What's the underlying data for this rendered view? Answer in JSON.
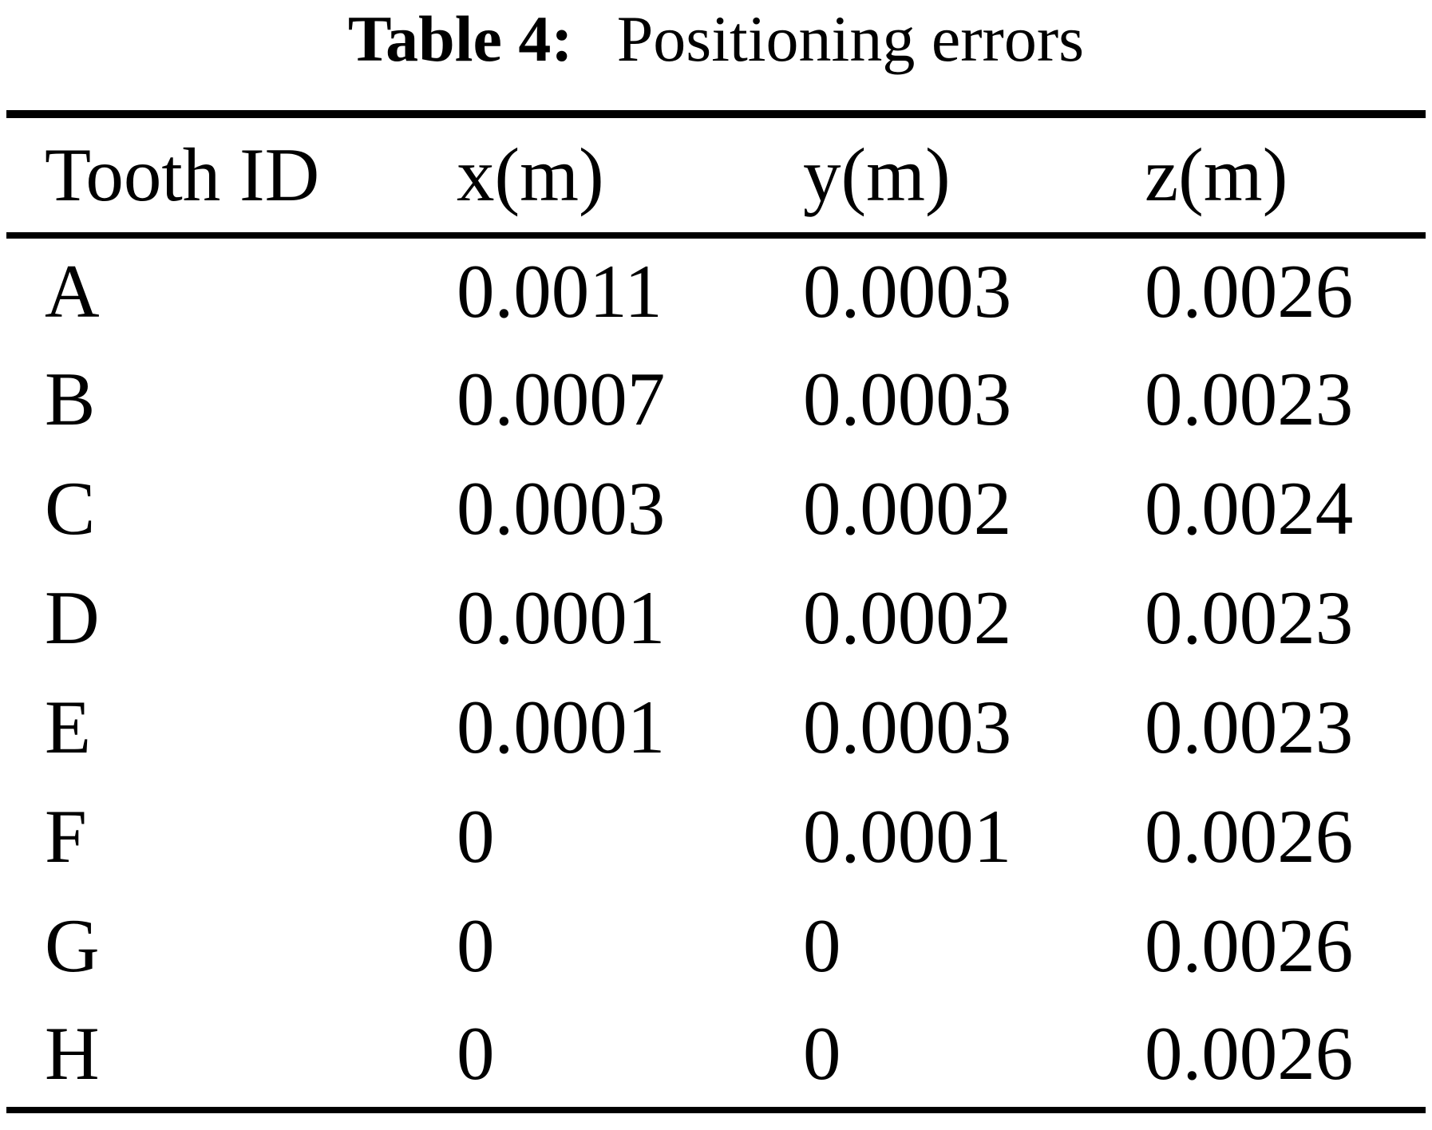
{
  "caption": {
    "label": "Table 4:",
    "text": "Positioning errors"
  },
  "table": {
    "columns": [
      "Tooth ID",
      "x(m)",
      "y(m)",
      "z(m)"
    ],
    "rows": [
      {
        "id": "A",
        "x": "0.0011",
        "y": "0.0003",
        "z": "0.0026"
      },
      {
        "id": "B",
        "x": "0.0007",
        "y": "0.0003",
        "z": "0.0023"
      },
      {
        "id": "C",
        "x": "0.0003",
        "y": "0.0002",
        "z": "0.0024"
      },
      {
        "id": "D",
        "x": "0.0001",
        "y": "0.0002",
        "z": "0.0023"
      },
      {
        "id": "E",
        "x": "0.0001",
        "y": "0.0003",
        "z": "0.0023"
      },
      {
        "id": "F",
        "x": "0",
        "y": "0.0001",
        "z": "0.0026"
      },
      {
        "id": "G",
        "x": "0",
        "y": "0",
        "z": "0.0026"
      },
      {
        "id": "H",
        "x": "0",
        "y": "0",
        "z": "0.0026"
      }
    ]
  },
  "colors": {
    "text": "#000000",
    "background": "#ffffff",
    "rule": "#000000"
  },
  "chart_data": {
    "type": "table",
    "title": "Table 4: Positioning errors",
    "columns": [
      "Tooth ID",
      "x(m)",
      "y(m)",
      "z(m)"
    ],
    "rows": [
      [
        "A",
        0.0011,
        0.0003,
        0.0026
      ],
      [
        "B",
        0.0007,
        0.0003,
        0.0023
      ],
      [
        "C",
        0.0003,
        0.0002,
        0.0024
      ],
      [
        "D",
        0.0001,
        0.0002,
        0.0023
      ],
      [
        "E",
        0.0001,
        0.0003,
        0.0023
      ],
      [
        "F",
        0,
        0.0001,
        0.0026
      ],
      [
        "G",
        0,
        0,
        0.0026
      ],
      [
        "H",
        0,
        0,
        0.0026
      ]
    ]
  }
}
